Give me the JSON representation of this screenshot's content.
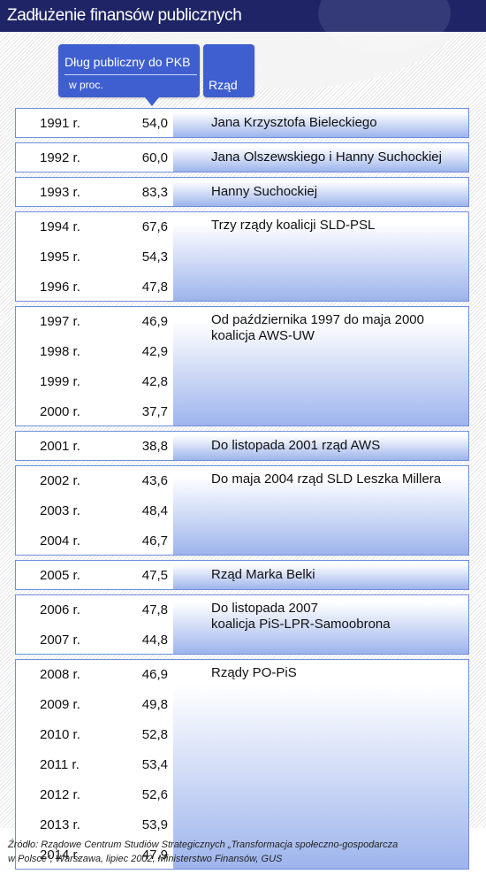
{
  "title": "Zadłużenie finansów publicznych",
  "colors": {
    "title_bg": "#1e2466",
    "header_bg": "#3f5fd0",
    "border": "#6f8fdc",
    "gradient_end": "#9db4ec"
  },
  "chart_data": {
    "type": "table",
    "col_headers": {
      "debt_line1": "Dług publiczny do PKB",
      "debt_line2": "w proc.",
      "government": "Rząd"
    },
    "groups": [
      {
        "government": [
          "Jana Krzysztofa Bieleckiego"
        ],
        "rows": [
          {
            "year": "1991 r.",
            "value": "54,0"
          }
        ]
      },
      {
        "government": [
          "Jana Olszewskiego i Hanny Suchockiej"
        ],
        "rows": [
          {
            "year": "1992 r.",
            "value": "60,0"
          }
        ]
      },
      {
        "government": [
          "Hanny Suchockiej"
        ],
        "rows": [
          {
            "year": "1993 r.",
            "value": "83,3"
          }
        ]
      },
      {
        "government": [
          "Trzy rządy koalicji SLD-PSL"
        ],
        "rows": [
          {
            "year": "1994 r.",
            "value": "67,6"
          },
          {
            "year": "1995 r.",
            "value": "54,3"
          },
          {
            "year": "1996 r.",
            "value": "47,8"
          }
        ]
      },
      {
        "government": [
          "Od października 1997 do maja 2000",
          "koalicja AWS-UW"
        ],
        "rows": [
          {
            "year": "1997 r.",
            "value": "46,9"
          },
          {
            "year": "1998 r.",
            "value": "42,9"
          },
          {
            "year": "1999 r.",
            "value": "42,8"
          },
          {
            "year": "2000 r.",
            "value": "37,7"
          }
        ]
      },
      {
        "government": [
          "Do listopada 2001 rząd AWS"
        ],
        "rows": [
          {
            "year": "2001 r.",
            "value": "38,8"
          }
        ]
      },
      {
        "government": [
          "Do maja 2004 rząd SLD Leszka Millera"
        ],
        "rows": [
          {
            "year": "2002 r.",
            "value": "43,6"
          },
          {
            "year": "2003 r.",
            "value": "48,4"
          },
          {
            "year": "2004 r.",
            "value": "46,7"
          }
        ]
      },
      {
        "government": [
          "Rząd Marka Belki"
        ],
        "rows": [
          {
            "year": "2005 r.",
            "value": "47,5"
          }
        ]
      },
      {
        "government": [
          "Do listopada 2007",
          "koalicja PiS-LPR-Samoobrona"
        ],
        "rows": [
          {
            "year": "2006 r.",
            "value": "47,8"
          },
          {
            "year": "2007 r.",
            "value": "44,8"
          }
        ]
      },
      {
        "government": [
          "Rządy PO-PiS"
        ],
        "rows": [
          {
            "year": "2008 r.",
            "value": "46,9"
          },
          {
            "year": "2009 r.",
            "value": "49,8"
          },
          {
            "year": "2010 r.",
            "value": "52,8"
          },
          {
            "year": "2011 r.",
            "value": "53,4"
          },
          {
            "year": "2012 r.",
            "value": "52,6"
          },
          {
            "year": "2013 r.",
            "value": "53,9"
          },
          {
            "year": "2014 r.",
            "value": "47,9"
          }
        ]
      }
    ]
  },
  "source": {
    "line1": "Źródło: Rządowe Centrum Studiów Strategicznych „Transformacja społeczno-gospodarcza",
    "line2": "w Polsce”, Warszawa, lipiec 2002, Ministerstwo Finansów, GUS"
  }
}
